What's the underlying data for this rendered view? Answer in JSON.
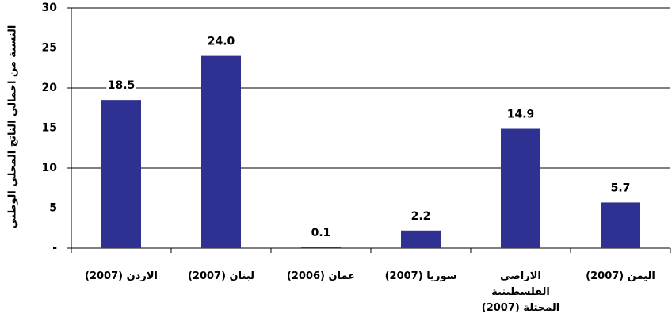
{
  "chart_data": {
    "type": "bar",
    "y_label": "النسبة من اجمالي الناتج المحلي الوطني",
    "categories": [
      "الاردن (2007)",
      "لبنان (2007)",
      "عمان (2006)",
      "سوريا (2007)",
      "الاراضي الفلسطينية المحتلة (2007)",
      "اليمن (2007)"
    ],
    "values": [
      18.5,
      24.0,
      0.1,
      2.2,
      14.9,
      5.7
    ],
    "value_labels": [
      "18.5",
      "24.0",
      "0.1",
      "2.2",
      "14.9",
      "5.7"
    ],
    "color": "#2e3192",
    "ylim": [
      0,
      30
    ],
    "yticks": [
      {
        "value": 0,
        "label": "-"
      },
      5,
      10,
      15,
      20,
      25,
      30
    ],
    "grid": true
  }
}
